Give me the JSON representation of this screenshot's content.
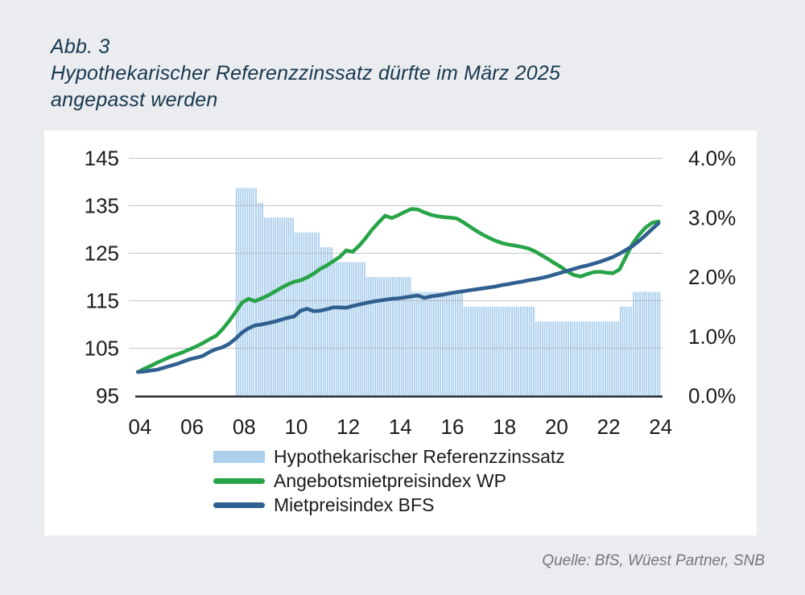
{
  "page": {
    "background_color": "#EBECEF",
    "card_background_color": "#FFFFFF"
  },
  "figure": {
    "label": "Abb. 3",
    "title_line1": "Hypothekarischer Referenzzinssatz dürfte im März 2025",
    "title_line2": "angepasst werden",
    "title_color": "#17384F"
  },
  "source": {
    "text": "Quelle: BfS, Wüest Partner, SNB"
  },
  "chart_data": {
    "type": "combo_bar_line",
    "title": "Hypothekarischer Referenzzinssatz dürfte im März 2025 angepasst werden",
    "xlabel": "",
    "ylabel": "",
    "grid": true,
    "legend_position": "bottom",
    "axis_text_color": "#1b1b1b",
    "gridline_color": "#b6b9bd",
    "baseline_color": "#26282b",
    "x_axis": {
      "range": [
        2004.88,
        2025.07
      ],
      "tick_labels": [
        "04",
        "06",
        "08",
        "10",
        "12",
        "14",
        "16",
        "18",
        "20",
        "22",
        "24"
      ],
      "tick_positions": [
        2005,
        2007,
        2009,
        2011,
        2013,
        2015,
        2017,
        2019,
        2021,
        2023,
        2025
      ]
    },
    "left_axis": {
      "range": [
        95,
        145
      ],
      "tick_labels": [
        "145",
        "135",
        "125",
        "115",
        "105",
        "95"
      ],
      "tick_values": [
        145,
        135,
        125,
        115,
        105,
        95
      ]
    },
    "right_axis": {
      "range": [
        0,
        4
      ],
      "unit": "%",
      "tick_labels": [
        "4.0%",
        "3.0%",
        "2.0%",
        "1.0%",
        "0.0%"
      ],
      "tick_values": [
        4.0,
        3.0,
        2.0,
        1.0,
        0.0
      ]
    },
    "series": [
      {
        "name": "Hypothekarischer Referenzzinssatz",
        "type": "bar",
        "axis": "right",
        "color": "#ABCFED",
        "unit": "%",
        "steps": [
          {
            "from": "2008-09",
            "to": "2009-06",
            "rate": 3.5
          },
          {
            "from": "2009-07",
            "to": "2009-09",
            "rate": 3.25
          },
          {
            "from": "2009-10",
            "to": "2010-11",
            "rate": 3.0
          },
          {
            "from": "2010-12",
            "to": "2011-11",
            "rate": 2.75
          },
          {
            "from": "2011-12",
            "to": "2012-05",
            "rate": 2.5
          },
          {
            "from": "2012-06",
            "to": "2013-08",
            "rate": 2.25
          },
          {
            "from": "2013-09",
            "to": "2015-05",
            "rate": 2.0
          },
          {
            "from": "2015-06",
            "to": "2017-05",
            "rate": 1.75
          },
          {
            "from": "2017-06",
            "to": "2020-02",
            "rate": 1.5
          },
          {
            "from": "2020-03",
            "to": "2023-05",
            "rate": 1.25
          },
          {
            "from": "2023-06",
            "to": "2023-11",
            "rate": 1.5
          },
          {
            "from": "2023-12",
            "to": "2024-12",
            "rate": 1.75
          }
        ]
      },
      {
        "name": "Angebotsmietpreisindex WP",
        "type": "line",
        "axis": "left",
        "color": "#28A448",
        "points": [
          [
            2004.92,
            100
          ],
          [
            2005.17,
            100.7
          ],
          [
            2005.42,
            101.3
          ],
          [
            2005.67,
            102
          ],
          [
            2005.92,
            102.6
          ],
          [
            2006.17,
            103.2
          ],
          [
            2006.42,
            103.7
          ],
          [
            2006.67,
            104.2
          ],
          [
            2006.92,
            104.8
          ],
          [
            2007.17,
            105.4
          ],
          [
            2007.42,
            106.1
          ],
          [
            2007.67,
            106.9
          ],
          [
            2007.92,
            107.6
          ],
          [
            2008.17,
            109
          ],
          [
            2008.42,
            110.7
          ],
          [
            2008.67,
            112.6
          ],
          [
            2008.92,
            114.6
          ],
          [
            2009.17,
            115.4
          ],
          [
            2009.42,
            114.9
          ],
          [
            2009.67,
            115.5
          ],
          [
            2009.92,
            116.1
          ],
          [
            2010.17,
            116.9
          ],
          [
            2010.42,
            117.7
          ],
          [
            2010.67,
            118.4
          ],
          [
            2010.92,
            119
          ],
          [
            2011.17,
            119.3
          ],
          [
            2011.42,
            119.9
          ],
          [
            2011.67,
            120.7
          ],
          [
            2011.92,
            121.7
          ],
          [
            2012.17,
            122.4
          ],
          [
            2012.42,
            123.3
          ],
          [
            2012.67,
            124.2
          ],
          [
            2012.92,
            125.6
          ],
          [
            2013.17,
            125.3
          ],
          [
            2013.42,
            126.6
          ],
          [
            2013.67,
            128.2
          ],
          [
            2013.92,
            130
          ],
          [
            2014.17,
            131.5
          ],
          [
            2014.42,
            132.9
          ],
          [
            2014.67,
            132.4
          ],
          [
            2014.92,
            133
          ],
          [
            2015.17,
            133.7
          ],
          [
            2015.42,
            134.3
          ],
          [
            2015.67,
            134.2
          ],
          [
            2015.92,
            133.6
          ],
          [
            2016.17,
            133.1
          ],
          [
            2016.42,
            132.8
          ],
          [
            2016.67,
            132.6
          ],
          [
            2016.92,
            132.5
          ],
          [
            2017.17,
            132.3
          ],
          [
            2017.42,
            131.5
          ],
          [
            2017.67,
            130.6
          ],
          [
            2017.92,
            129.7
          ],
          [
            2018.17,
            128.9
          ],
          [
            2018.42,
            128.2
          ],
          [
            2018.67,
            127.6
          ],
          [
            2018.92,
            127.1
          ],
          [
            2019.17,
            126.8
          ],
          [
            2019.42,
            126.6
          ],
          [
            2019.67,
            126.3
          ],
          [
            2019.92,
            126
          ],
          [
            2020.17,
            125.4
          ],
          [
            2020.42,
            124.6
          ],
          [
            2020.67,
            123.8
          ],
          [
            2020.92,
            122.9
          ],
          [
            2021.17,
            122.1
          ],
          [
            2021.42,
            121.1
          ],
          [
            2021.67,
            120.4
          ],
          [
            2021.92,
            120.1
          ],
          [
            2022.17,
            120.6
          ],
          [
            2022.42,
            121
          ],
          [
            2022.67,
            121.1
          ],
          [
            2022.92,
            120.9
          ],
          [
            2023.17,
            120.8
          ],
          [
            2023.42,
            121.6
          ],
          [
            2023.67,
            124.3
          ],
          [
            2023.92,
            127
          ],
          [
            2024.17,
            128.9
          ],
          [
            2024.42,
            130.4
          ],
          [
            2024.67,
            131.4
          ],
          [
            2024.92,
            131.7
          ]
        ]
      },
      {
        "name": "Mietpreisindex BFS",
        "type": "line",
        "axis": "left",
        "color": "#2F6090",
        "points": [
          [
            2004.92,
            100
          ],
          [
            2005.17,
            100.1
          ],
          [
            2005.42,
            100.3
          ],
          [
            2005.67,
            100.5
          ],
          [
            2005.92,
            100.9
          ],
          [
            2006.17,
            101.3
          ],
          [
            2006.42,
            101.7
          ],
          [
            2006.67,
            102.2
          ],
          [
            2006.92,
            102.7
          ],
          [
            2007.17,
            103
          ],
          [
            2007.42,
            103.4
          ],
          [
            2007.67,
            104.2
          ],
          [
            2007.92,
            104.8
          ],
          [
            2008.17,
            105.2
          ],
          [
            2008.42,
            105.9
          ],
          [
            2008.67,
            107
          ],
          [
            2008.92,
            108.3
          ],
          [
            2009.17,
            109.2
          ],
          [
            2009.42,
            109.8
          ],
          [
            2009.67,
            110
          ],
          [
            2009.92,
            110.3
          ],
          [
            2010.17,
            110.6
          ],
          [
            2010.42,
            111
          ],
          [
            2010.67,
            111.4
          ],
          [
            2010.92,
            111.7
          ],
          [
            2011.17,
            112.9
          ],
          [
            2011.42,
            113.3
          ],
          [
            2011.67,
            112.8
          ],
          [
            2011.92,
            112.9
          ],
          [
            2012.17,
            113.2
          ],
          [
            2012.42,
            113.6
          ],
          [
            2012.67,
            113.6
          ],
          [
            2012.92,
            113.5
          ],
          [
            2013.17,
            113.9
          ],
          [
            2013.42,
            114.2
          ],
          [
            2013.67,
            114.5
          ],
          [
            2013.92,
            114.8
          ],
          [
            2014.17,
            115
          ],
          [
            2014.42,
            115.2
          ],
          [
            2014.67,
            115.4
          ],
          [
            2014.92,
            115.5
          ],
          [
            2015.17,
            115.7
          ],
          [
            2015.42,
            115.9
          ],
          [
            2015.67,
            116.1
          ],
          [
            2015.92,
            115.6
          ],
          [
            2016.17,
            115.9
          ],
          [
            2016.42,
            116.1
          ],
          [
            2016.67,
            116.3
          ],
          [
            2016.92,
            116.6
          ],
          [
            2017.17,
            116.8
          ],
          [
            2017.42,
            117
          ],
          [
            2017.67,
            117.2
          ],
          [
            2017.92,
            117.4
          ],
          [
            2018.17,
            117.6
          ],
          [
            2018.42,
            117.8
          ],
          [
            2018.67,
            118
          ],
          [
            2018.92,
            118.3
          ],
          [
            2019.17,
            118.5
          ],
          [
            2019.42,
            118.8
          ],
          [
            2019.67,
            119
          ],
          [
            2019.92,
            119.3
          ],
          [
            2020.17,
            119.5
          ],
          [
            2020.42,
            119.8
          ],
          [
            2020.67,
            120.1
          ],
          [
            2020.92,
            120.5
          ],
          [
            2021.17,
            120.9
          ],
          [
            2021.42,
            121.3
          ],
          [
            2021.67,
            121.7
          ],
          [
            2021.92,
            122.1
          ],
          [
            2022.17,
            122.4
          ],
          [
            2022.42,
            122.8
          ],
          [
            2022.67,
            123.2
          ],
          [
            2022.92,
            123.7
          ],
          [
            2023.17,
            124.2
          ],
          [
            2023.42,
            124.9
          ],
          [
            2023.67,
            125.7
          ],
          [
            2023.92,
            126.5
          ],
          [
            2024.17,
            127.6
          ],
          [
            2024.42,
            128.8
          ],
          [
            2024.67,
            130.1
          ],
          [
            2024.92,
            131.3
          ]
        ]
      }
    ]
  }
}
